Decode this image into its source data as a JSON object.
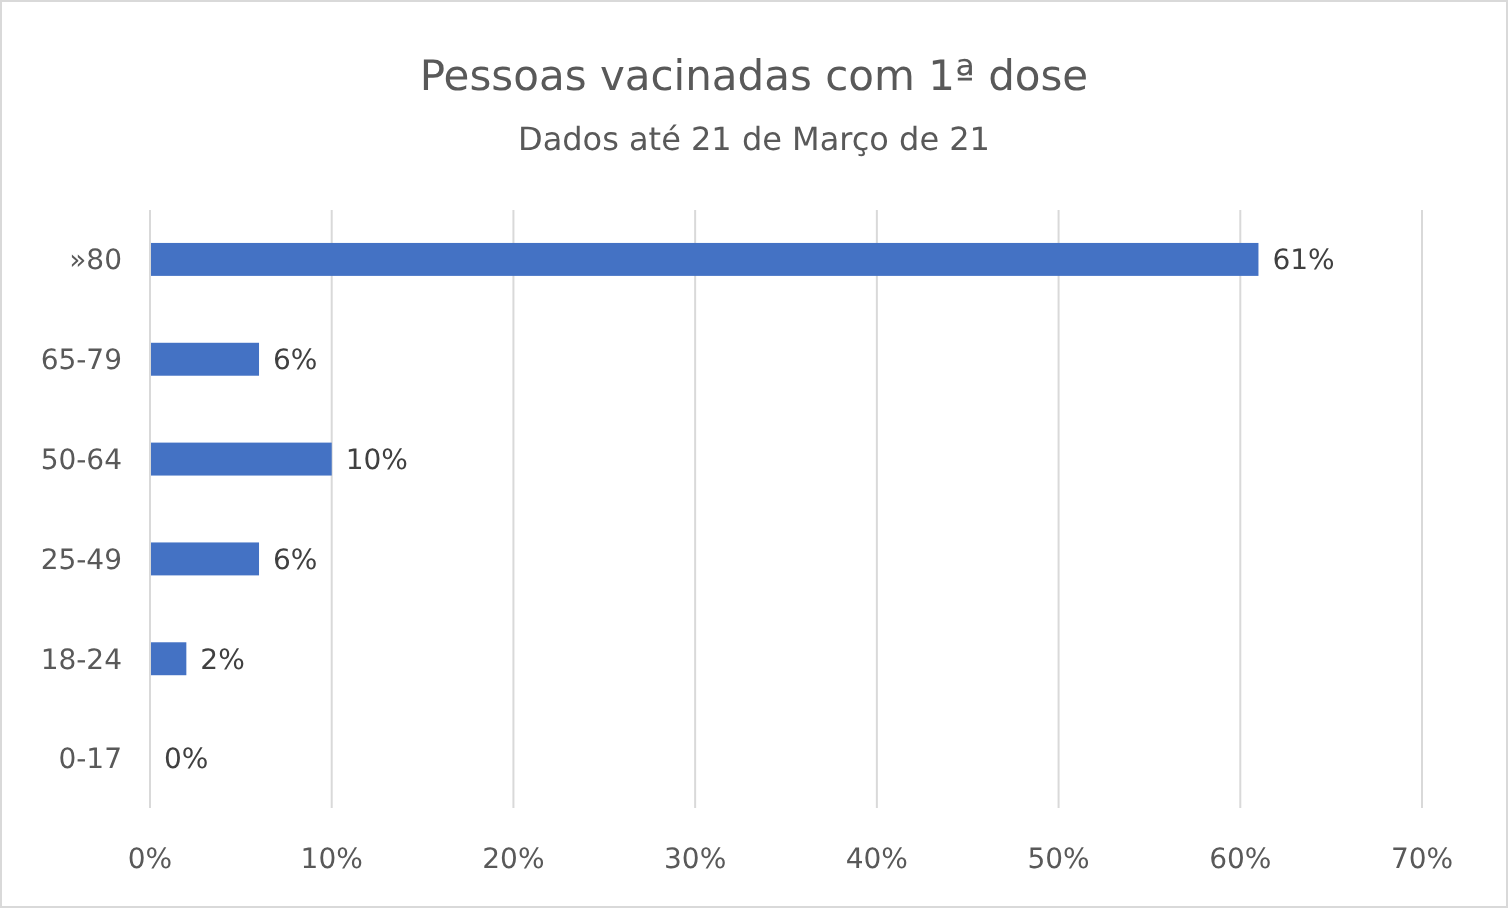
{
  "chart_data": {
    "type": "bar",
    "orientation": "horizontal",
    "title": "Pessoas vacinadas com 1ª dose",
    "subtitle": "Dados até 21 de Março de 21",
    "categories": [
      "»80",
      "65-79",
      "50-64",
      "25-49",
      "18-24",
      "0-17"
    ],
    "values": [
      61,
      6,
      10,
      6,
      2,
      0
    ],
    "color": "#4472c4",
    "value_labels": [
      "61%",
      "6%",
      "10%",
      "6%",
      "2%",
      "0%"
    ],
    "xlim": [
      0,
      70
    ],
    "xticks": [
      {
        "value": 0,
        "label": "0%"
      },
      {
        "value": 10,
        "label": "10%"
      },
      {
        "value": 20,
        "label": "20%"
      },
      {
        "value": 30,
        "label": "30%"
      },
      {
        "value": 40,
        "label": "40%"
      },
      {
        "value": 50,
        "label": "50%"
      },
      {
        "value": 60,
        "label": "60%"
      },
      {
        "value": 70,
        "label": "70%"
      }
    ],
    "grid": "x"
  }
}
